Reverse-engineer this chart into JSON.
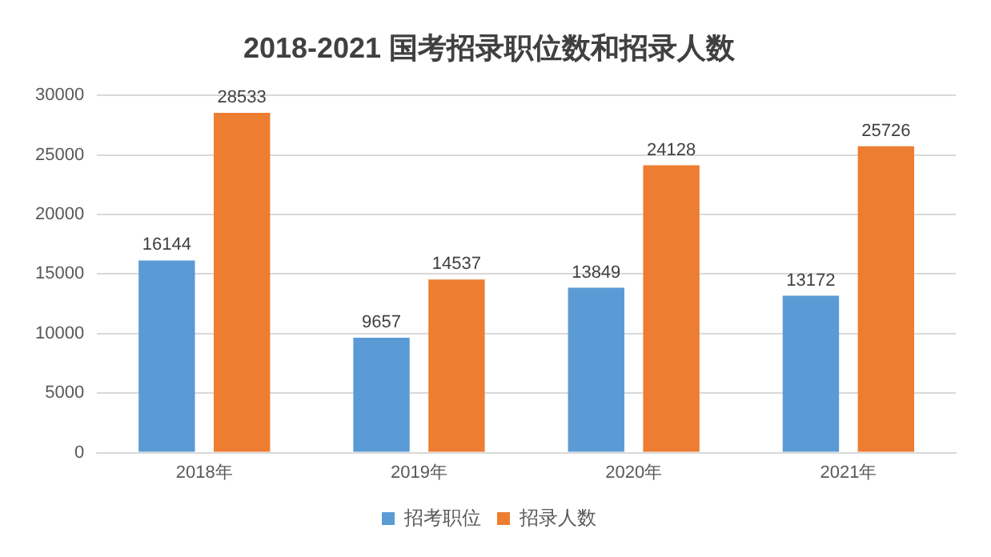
{
  "chart_data": {
    "type": "bar",
    "title": "2018-2021 国考招录职位数和招录人数",
    "categories": [
      "2018年",
      "2019年",
      "2020年",
      "2021年"
    ],
    "series": [
      {
        "name": "招考职位",
        "color": "#5b9bd5",
        "values": [
          16144,
          9657,
          13849,
          13172
        ]
      },
      {
        "name": "招录人数",
        "color": "#ed7d31",
        "values": [
          28533,
          14537,
          24128,
          25726
        ]
      }
    ],
    "ylim": [
      0,
      30000
    ],
    "yticks": [
      0,
      5000,
      10000,
      15000,
      20000,
      25000,
      30000
    ],
    "grid": "y",
    "legend": "bottom",
    "data_labels": true
  }
}
